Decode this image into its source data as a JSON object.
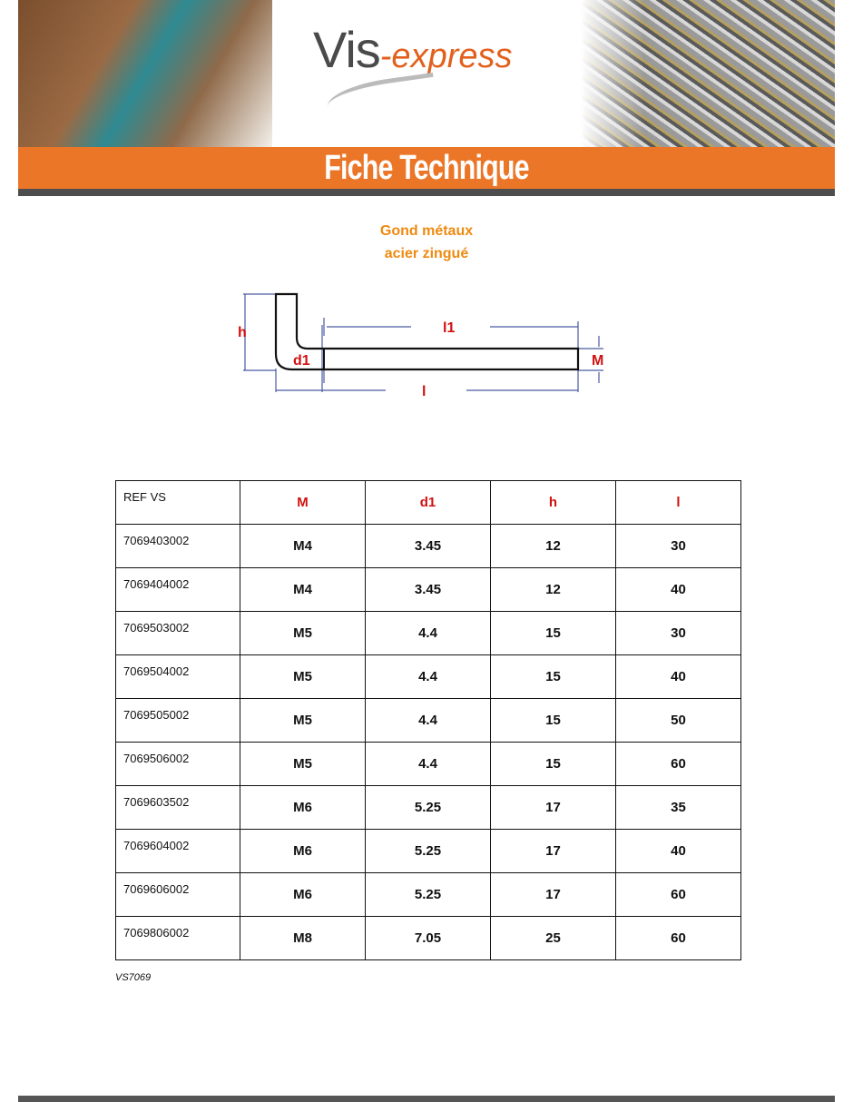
{
  "header": {
    "logo_main": "Vis",
    "logo_accent": "-express",
    "banner_title": "Fiche Technique"
  },
  "product": {
    "title_line1": "Gond métaux",
    "title_line2": "acier zingué"
  },
  "diagram": {
    "labels": {
      "h": "h",
      "l1": "l1",
      "d1": "d1",
      "M": "M",
      "l": "l"
    }
  },
  "table": {
    "headers": [
      "REF VS",
      "M",
      "d1",
      "h",
      "l"
    ],
    "rows": [
      [
        "7069403002",
        "M4",
        "3.45",
        "12",
        "30"
      ],
      [
        "7069404002",
        "M4",
        "3.45",
        "12",
        "40"
      ],
      [
        "7069503002",
        "M5",
        "4.4",
        "15",
        "30"
      ],
      [
        "7069504002",
        "M5",
        "4.4",
        "15",
        "40"
      ],
      [
        "7069505002",
        "M5",
        "4.4",
        "15",
        "50"
      ],
      [
        "7069506002",
        "M5",
        "4.4",
        "15",
        "60"
      ],
      [
        "7069603502",
        "M6",
        "5.25",
        "17",
        "35"
      ],
      [
        "7069604002",
        "M6",
        "5.25",
        "17",
        "40"
      ],
      [
        "7069606002",
        "M6",
        "5.25",
        "17",
        "60"
      ],
      [
        "7069806002",
        "M8",
        "7.05",
        "25",
        "60"
      ]
    ]
  },
  "footer": {
    "code": "VS7069"
  },
  "colors": {
    "orange": "#ec7627",
    "title": "#ef8a10",
    "header_red": "#d01010"
  }
}
